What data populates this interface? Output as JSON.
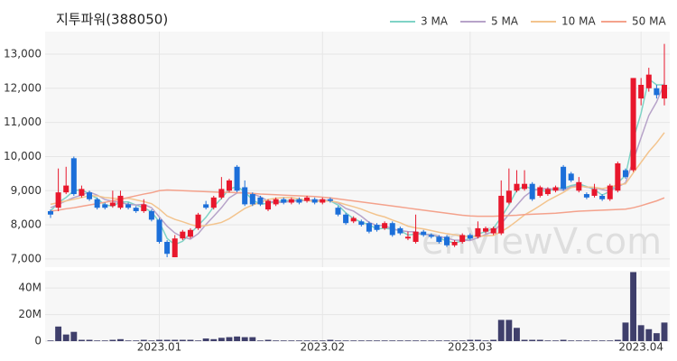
{
  "chart_data": {
    "type": "candlestick",
    "title": "지투파워(388050)",
    "watermark": "enVlewV.com",
    "categories": [
      null,
      null,
      null,
      null,
      null,
      null,
      null,
      null,
      null,
      null,
      null,
      null,
      null,
      null,
      "2023.01",
      null,
      null,
      null,
      null,
      null,
      null,
      null,
      null,
      null,
      null,
      null,
      null,
      null,
      null,
      null,
      null,
      null,
      null,
      null,
      null,
      "2023.02",
      null,
      null,
      null,
      null,
      null,
      null,
      null,
      null,
      null,
      null,
      null,
      null,
      null,
      null,
      null,
      null,
      null,
      null,
      "2023.03",
      null,
      null,
      null,
      null,
      null,
      null,
      null,
      null,
      null,
      null,
      null,
      null,
      null,
      null,
      null,
      null,
      null,
      null,
      null,
      null,
      null,
      "2023.04",
      null,
      null,
      null
    ],
    "open": [
      8400,
      8500,
      8950,
      9950,
      8850,
      8950,
      8750,
      8600,
      8550,
      8500,
      8600,
      8500,
      8400,
      8400,
      8150,
      7500,
      7050,
      7600,
      7650,
      7900,
      8600,
      8500,
      8800,
      9000,
      9700,
      9100,
      8900,
      8800,
      8450,
      8600,
      8750,
      8650,
      8750,
      8700,
      8750,
      8650,
      8750,
      8500,
      8300,
      8100,
      8100,
      8050,
      8000,
      7900,
      8050,
      7900,
      7600,
      7500,
      7800,
      7700,
      7650,
      7650,
      7400,
      7500,
      7700,
      7650,
      7800,
      7750,
      7750,
      8650,
      9000,
      9050,
      9200,
      8850,
      8900,
      9000,
      9700,
      9500,
      9000,
      8900,
      8850,
      8850,
      8750,
      9000,
      9600,
      9600,
      11700,
      12000,
      12000,
      11700
    ],
    "high": [
      8450,
      9650,
      9700,
      10000,
      9150,
      9000,
      8800,
      8650,
      9000,
      9000,
      8650,
      8550,
      8750,
      8450,
      8200,
      7550,
      7700,
      7850,
      7900,
      8350,
      8700,
      8850,
      9400,
      9350,
      9750,
      9300,
      8950,
      8850,
      8750,
      8800,
      8800,
      8800,
      8800,
      8850,
      8800,
      8800,
      8800,
      8550,
      8350,
      8250,
      8150,
      8100,
      8050,
      8100,
      8100,
      7950,
      7800,
      8300,
      7850,
      7750,
      7700,
      7700,
      7550,
      7750,
      7750,
      8100,
      7950,
      7950,
      9300,
      9650,
      9600,
      9600,
      9250,
      9150,
      9100,
      9150,
      9750,
      9550,
      9400,
      8950,
      9200,
      8900,
      9200,
      9850,
      9650,
      12300,
      12300,
      12600,
      12100,
      13300
    ],
    "low": [
      8200,
      8400,
      8900,
      8850,
      8800,
      8700,
      8450,
      8450,
      8500,
      8450,
      8450,
      8350,
      8350,
      8100,
      7450,
      7050,
      7050,
      7550,
      7600,
      7850,
      8450,
      8450,
      8750,
      8950,
      8950,
      8550,
      8550,
      8550,
      8400,
      8550,
      8600,
      8600,
      8600,
      8650,
      8600,
      8600,
      8650,
      8250,
      8000,
      8050,
      7950,
      7750,
      7800,
      7850,
      7650,
      7700,
      7550,
      7450,
      7650,
      7600,
      7450,
      7350,
      7350,
      7450,
      7550,
      7600,
      7750,
      7700,
      7700,
      8600,
      8950,
      9000,
      8700,
      8800,
      8850,
      8950,
      9000,
      9250,
      8950,
      8750,
      8800,
      8700,
      8700,
      8950,
      9350,
      9550,
      11500,
      11900,
      11700,
      11500
    ],
    "close": [
      8300,
      8950,
      9150,
      8900,
      9050,
      8750,
      8500,
      8500,
      8650,
      8850,
      8500,
      8400,
      8600,
      8150,
      7500,
      7150,
      7600,
      7800,
      7850,
      8300,
      8500,
      8800,
      9050,
      9300,
      9000,
      8600,
      8600,
      8600,
      8700,
      8750,
      8650,
      8750,
      8650,
      8800,
      8650,
      8750,
      8700,
      8300,
      8050,
      8200,
      8000,
      7800,
      7850,
      8050,
      7700,
      7750,
      7650,
      7800,
      7700,
      7650,
      7500,
      7400,
      7500,
      7700,
      7600,
      7900,
      7900,
      7900,
      8850,
      9000,
      9200,
      9200,
      8750,
      9100,
      9050,
      9100,
      9050,
      9300,
      9250,
      8800,
      9050,
      8750,
      9150,
      9800,
      9400,
      12300,
      12100,
      12400,
      11800,
      12100
    ],
    "up_color": "#e8172c",
    "down_color": "#1c6fd9",
    "series": [
      {
        "name": "3 MA",
        "color": "#7fd3c6",
        "values": [
          8400,
          8650,
          8800,
          9000,
          9030,
          8900,
          8770,
          8580,
          8550,
          8670,
          8670,
          8580,
          8500,
          8380,
          8080,
          7600,
          7420,
          7520,
          7750,
          7980,
          8220,
          8530,
          8780,
          9050,
          9120,
          8970,
          8730,
          8600,
          8630,
          8680,
          8700,
          8720,
          8720,
          8730,
          8700,
          8730,
          8700,
          8580,
          8350,
          8180,
          8080,
          8000,
          7880,
          7900,
          7870,
          7830,
          7700,
          7730,
          7720,
          7720,
          7620,
          7520,
          7470,
          7530,
          7600,
          7730,
          7800,
          7900,
          8220,
          8580,
          9020,
          9130,
          9050,
          9020,
          8970,
          9080,
          9070,
          9150,
          9200,
          9120,
          9030,
          8870,
          8980,
          9230,
          9450,
          10500,
          11270,
          12270,
          12100,
          12100
        ]
      },
      {
        "name": "5 MA",
        "color": "#b7a3c9",
        "values": [
          8500,
          8600,
          8700,
          8800,
          8870,
          8960,
          8870,
          8740,
          8690,
          8650,
          8600,
          8580,
          8600,
          8500,
          8230,
          7960,
          7760,
          7640,
          7580,
          7740,
          8010,
          8250,
          8500,
          8790,
          8930,
          8950,
          8910,
          8820,
          8700,
          8650,
          8660,
          8690,
          8700,
          8720,
          8720,
          8720,
          8710,
          8640,
          8480,
          8400,
          8250,
          8070,
          7980,
          7980,
          7880,
          7830,
          7800,
          7790,
          7720,
          7710,
          7660,
          7610,
          7550,
          7550,
          7540,
          7620,
          7720,
          7800,
          8030,
          8310,
          8570,
          8830,
          9000,
          9050,
          9060,
          9040,
          9010,
          9120,
          9150,
          9100,
          9090,
          9030,
          8990,
          9110,
          9230,
          9890,
          10550,
          11200,
          11600,
          12140
        ]
      },
      {
        "name": "10 MA",
        "color": "#f3c48e",
        "values": [
          8600,
          8650,
          8700,
          8750,
          8800,
          8850,
          8850,
          8800,
          8780,
          8760,
          8780,
          8730,
          8680,
          8620,
          8460,
          8260,
          8160,
          8090,
          8010,
          7950,
          7980,
          8020,
          8070,
          8180,
          8330,
          8480,
          8580,
          8660,
          8740,
          8780,
          8800,
          8800,
          8760,
          8710,
          8680,
          8690,
          8700,
          8660,
          8590,
          8530,
          8460,
          8370,
          8290,
          8230,
          8140,
          8060,
          7960,
          7910,
          7880,
          7830,
          7780,
          7740,
          7710,
          7670,
          7660,
          7660,
          7680,
          7690,
          7800,
          7940,
          8110,
          8290,
          8420,
          8560,
          8710,
          8830,
          8950,
          9090,
          9130,
          9110,
          9100,
          9060,
          9100,
          9170,
          9200,
          9520,
          9830,
          10140,
          10400,
          10700
        ]
      },
      {
        "name": "50 MA",
        "color": "#f4a28c",
        "values": [
          8400,
          8430,
          8470,
          8500,
          8540,
          8580,
          8620,
          8660,
          8700,
          8750,
          8800,
          8850,
          8900,
          8940,
          9000,
          9020,
          9010,
          9000,
          8990,
          8980,
          8970,
          8960,
          8950,
          8950,
          8940,
          8930,
          8920,
          8900,
          8890,
          8880,
          8870,
          8860,
          8850,
          8840,
          8830,
          8810,
          8790,
          8760,
          8730,
          8700,
          8670,
          8640,
          8610,
          8580,
          8550,
          8520,
          8490,
          8460,
          8430,
          8400,
          8370,
          8340,
          8310,
          8280,
          8260,
          8250,
          8250,
          8250,
          8260,
          8270,
          8280,
          8300,
          8310,
          8320,
          8330,
          8340,
          8360,
          8380,
          8400,
          8410,
          8420,
          8430,
          8440,
          8450,
          8460,
          8500,
          8560,
          8630,
          8700,
          8790
        ]
      }
    ],
    "ylim": [
      6760,
      13660
    ],
    "yticks": [
      {
        "value": 7000,
        "label": "7,000"
      },
      {
        "value": 8000,
        "label": "8,000"
      },
      {
        "value": 9000,
        "label": "9,000"
      },
      {
        "value": 10000,
        "label": "10,000"
      },
      {
        "value": 11000,
        "label": "11,000"
      },
      {
        "value": 12000,
        "label": "12,000"
      },
      {
        "value": 13000,
        "label": "13,000"
      }
    ],
    "volume": [
      0.5,
      11,
      5,
      7,
      1,
      1,
      0.5,
      0.5,
      1,
      1.5,
      0.5,
      0.5,
      1,
      0.5,
      1,
      1,
      1,
      1,
      1,
      0.5,
      2,
      1.5,
      2.5,
      3,
      3.5,
      3,
      3,
      0.5,
      1,
      0.5,
      0.5,
      0.5,
      0.5,
      0.5,
      0.5,
      0.5,
      1,
      0.5,
      0.5,
      0.5,
      0.5,
      0.5,
      0.5,
      0.5,
      0.5,
      0.5,
      0.5,
      0.5,
      0.5,
      0.5,
      0.5,
      0.5,
      0.5,
      0.5,
      1,
      1,
      0.5,
      1,
      16,
      16,
      10,
      1,
      1,
      1,
      0.5,
      0.5,
      1,
      0.5,
      0.5,
      0.5,
      0.5,
      0.5,
      0.5,
      1,
      14,
      52,
      12,
      9,
      6,
      14
    ],
    "volume_color": "#3f3f6b",
    "volume_ylim": [
      0,
      53
    ],
    "volume_yticks": [
      0,
      {
        "value": 20,
        "label": "20M"
      },
      {
        "value": 40,
        "label": "40M"
      }
    ],
    "grid": true
  }
}
